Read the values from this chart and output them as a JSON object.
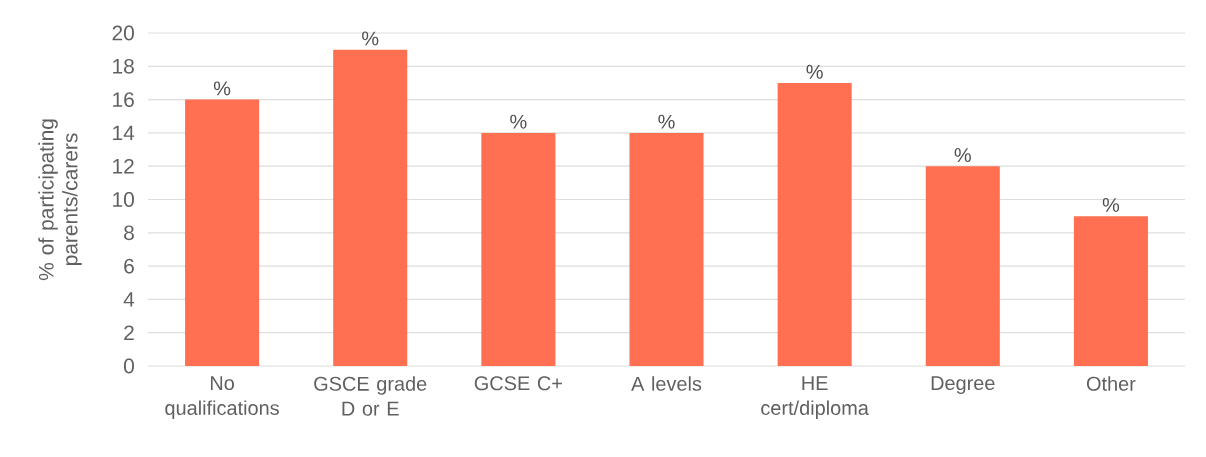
{
  "chart_data": {
    "type": "bar",
    "ylabel": "% of participating parents/carers",
    "categories": [
      "No qualifications",
      "GSCE grade D or E",
      "GCSE C+",
      "A levels",
      "HE cert/diploma",
      "Degree",
      "Other"
    ],
    "values": [
      16,
      19,
      14,
      14,
      17,
      12,
      9
    ],
    "color": "#ff7052",
    "value_labels": [
      "%",
      "%",
      "%",
      "%",
      "%",
      "%",
      "%"
    ],
    "ylim": [
      0,
      20
    ],
    "yticks": [
      0,
      2,
      4,
      6,
      8,
      10,
      12,
      14,
      16,
      18,
      20
    ],
    "grid": "y"
  }
}
